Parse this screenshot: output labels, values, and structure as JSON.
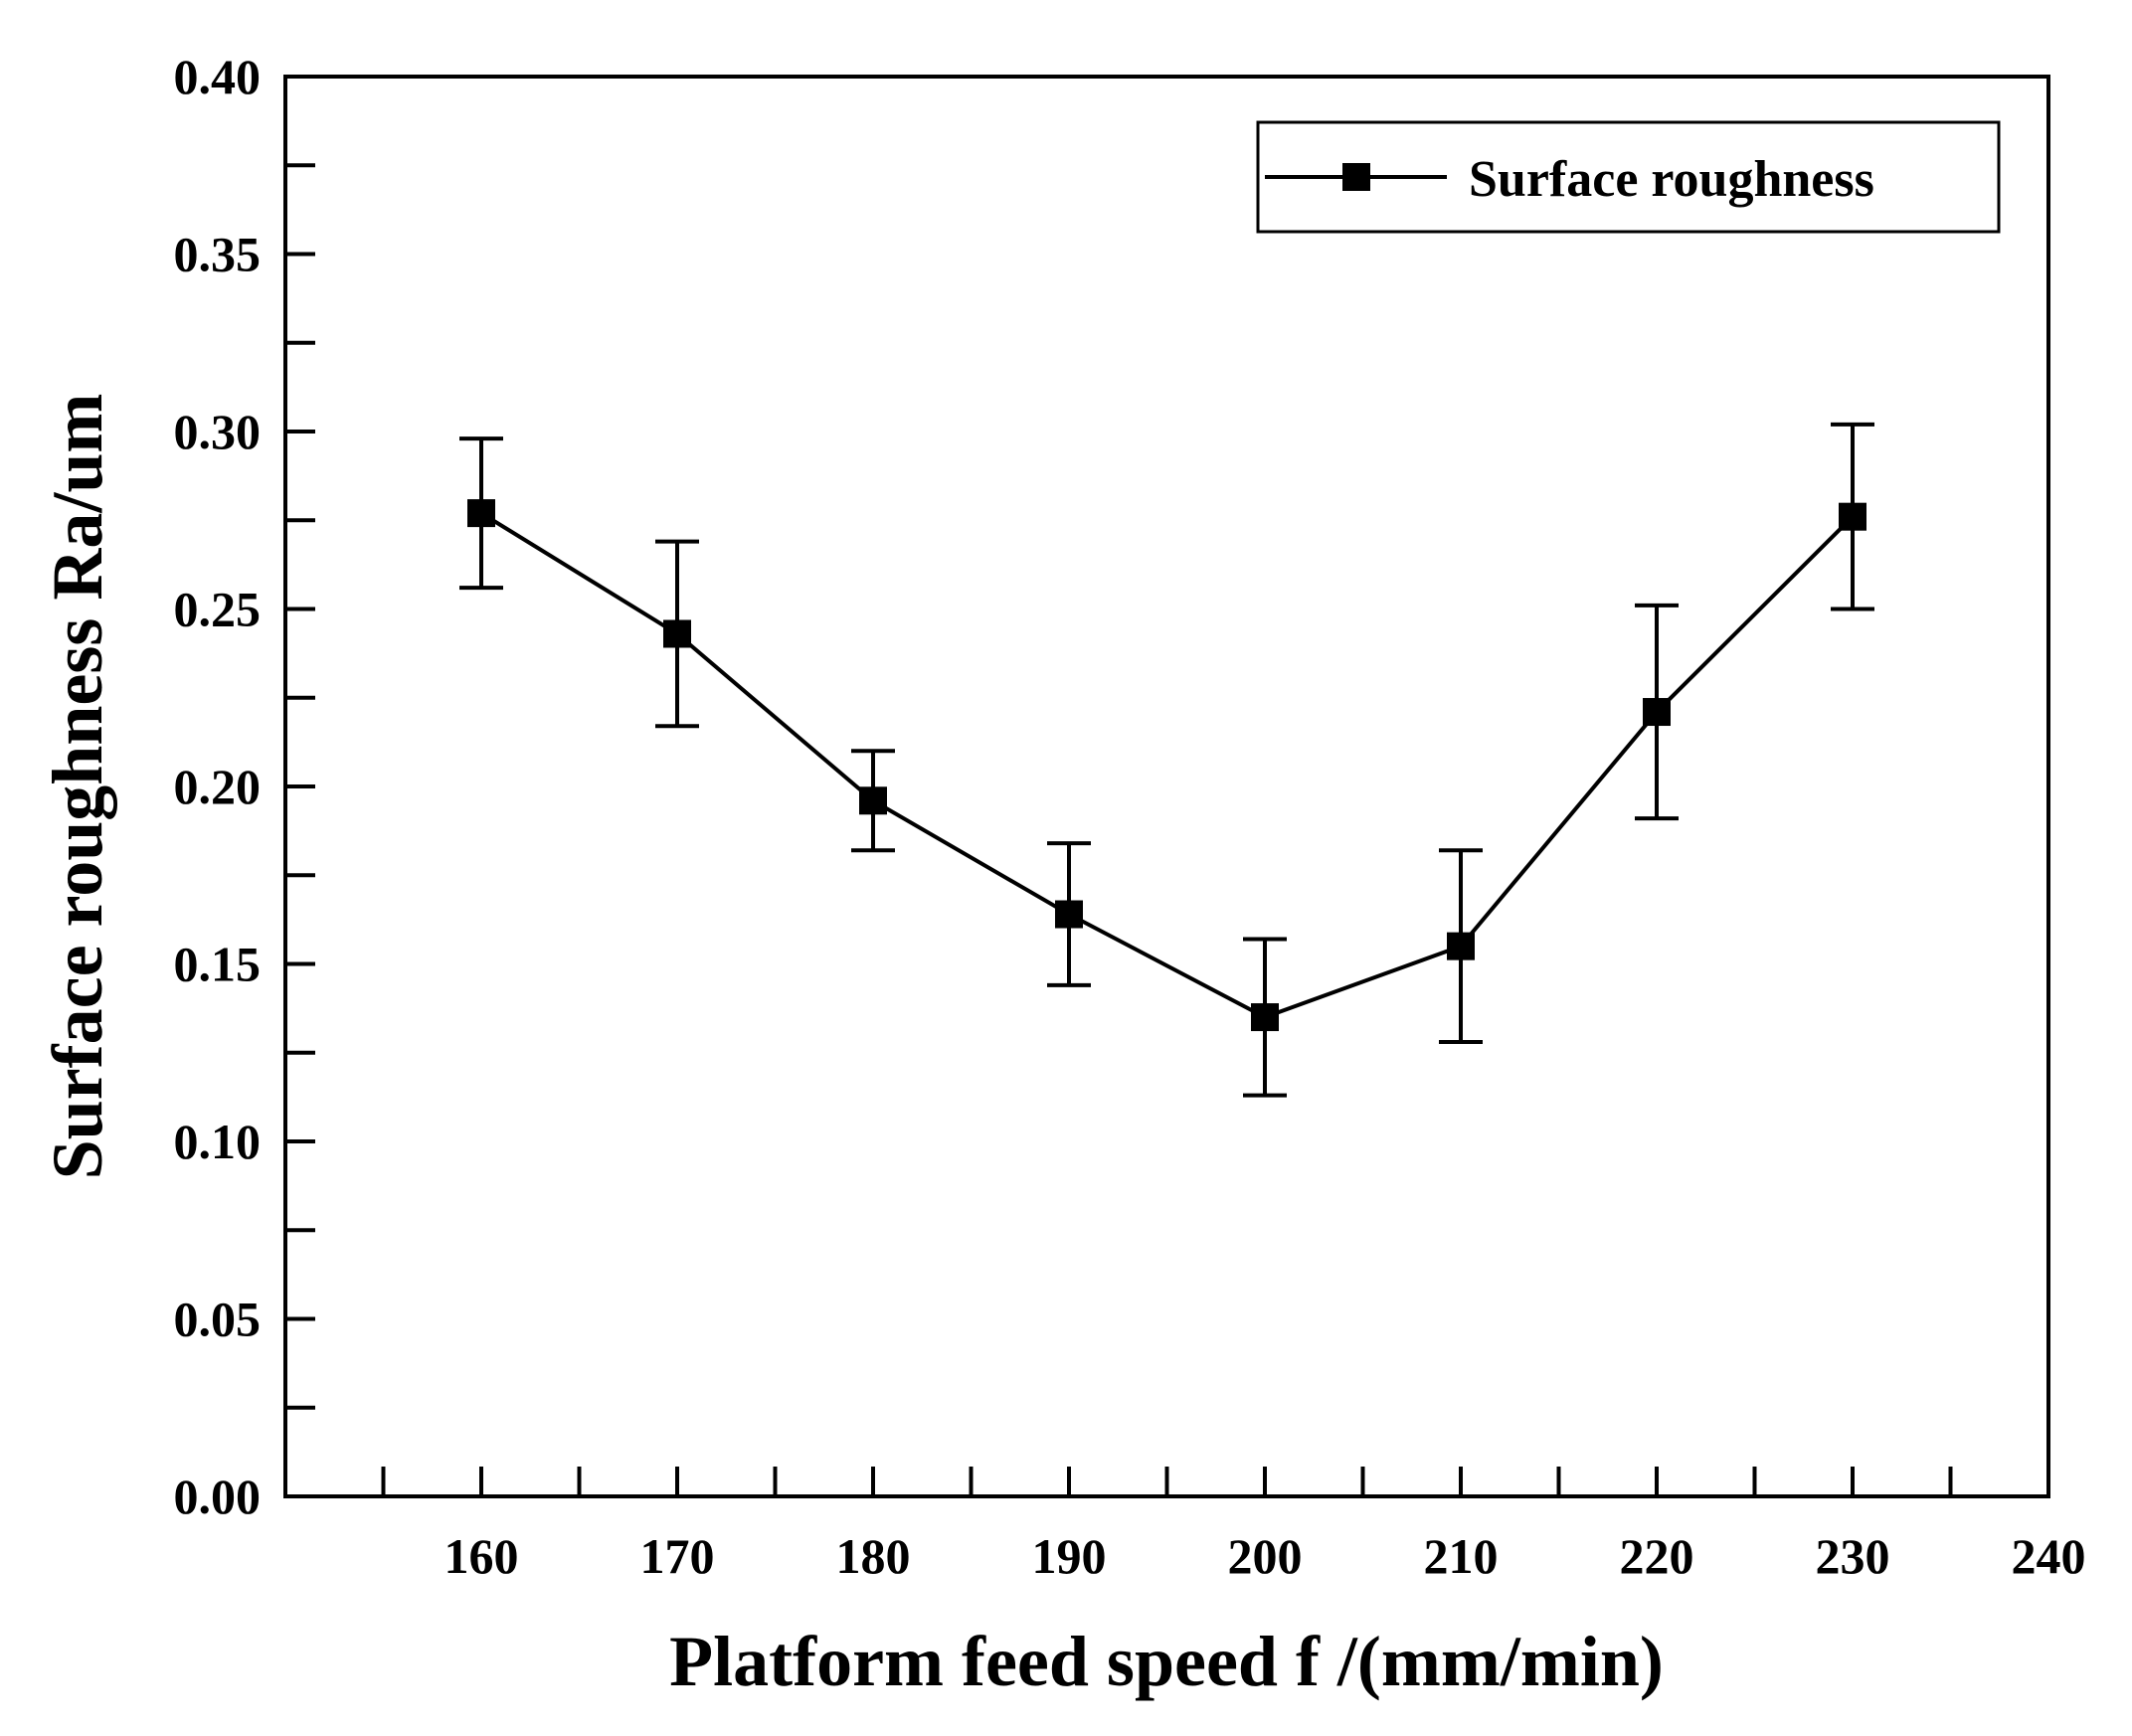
{
  "chart_data": {
    "type": "line",
    "title": "",
    "xlabel": "Platform feed speed f /(mm/min)",
    "ylabel": "Surface roughness Ra/um",
    "xlim": [
      150,
      240
    ],
    "ylim": [
      0.0,
      0.4
    ],
    "x_major_ticks": [
      160,
      170,
      180,
      190,
      200,
      210,
      220,
      230,
      240
    ],
    "x_tick_labels": [
      "160",
      "170",
      "180",
      "190",
      "200",
      "210",
      "220",
      "230",
      "240"
    ],
    "y_major_ticks": [
      0.0,
      0.05,
      0.1,
      0.15,
      0.2,
      0.25,
      0.3,
      0.35,
      0.4
    ],
    "y_tick_labels": [
      "0.00",
      "0.05",
      "0.10",
      "0.15",
      "0.20",
      "0.25",
      "0.30",
      "0.35",
      "0.40"
    ],
    "grid": false,
    "legend_position": "top-right",
    "series": [
      {
        "name": "Surface roughness",
        "color": "#000000",
        "marker": "square",
        "x": [
          160,
          170,
          180,
          190,
          200,
          210,
          220,
          230
        ],
        "y": [
          0.277,
          0.243,
          0.196,
          0.164,
          0.135,
          0.155,
          0.221,
          0.276
        ],
        "err_low": [
          0.256,
          0.217,
          0.182,
          0.144,
          0.113,
          0.128,
          0.191,
          0.25
        ],
        "err_high": [
          0.298,
          0.269,
          0.21,
          0.184,
          0.157,
          0.182,
          0.251,
          0.302
        ]
      }
    ]
  }
}
